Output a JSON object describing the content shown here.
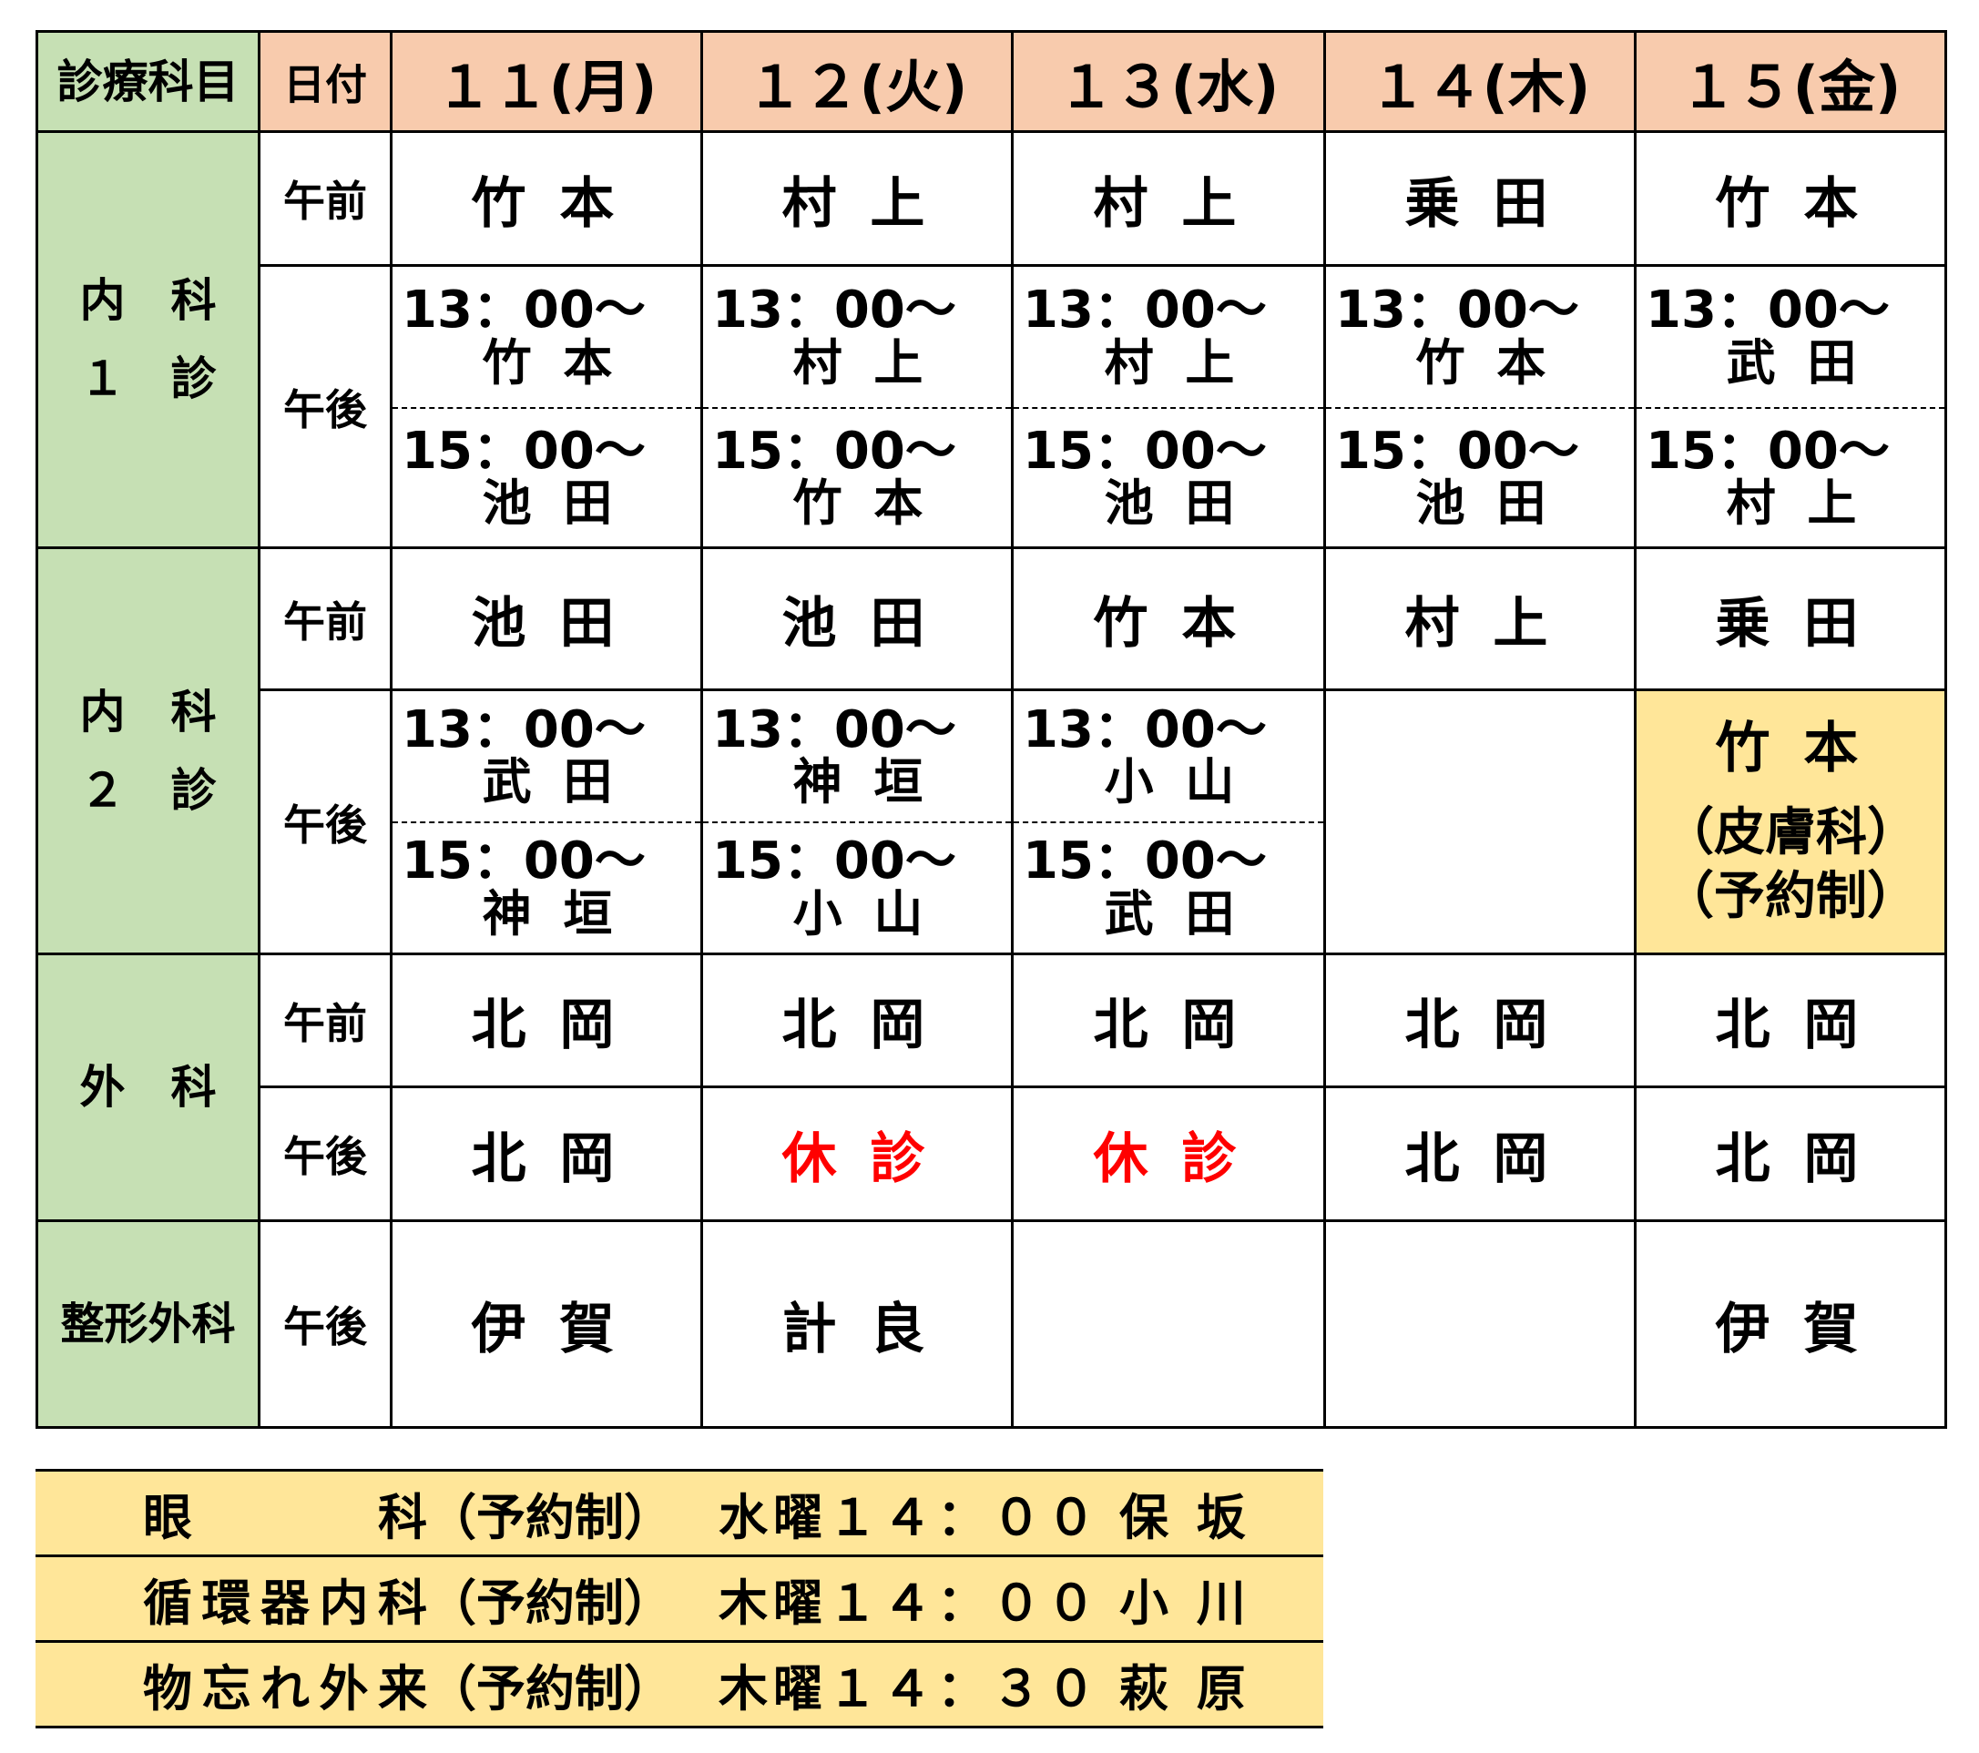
{
  "header": {
    "dept_label": "診療科目",
    "date_label": "日付",
    "days": [
      "１１(月)",
      "１２(火)",
      "１３(水)",
      "１４(木)",
      "１５(金)"
    ]
  },
  "periods": {
    "am": "午前",
    "pm": "午後"
  },
  "sections": [
    {
      "dept": [
        "内　科",
        "１　診"
      ],
      "am": [
        "竹 本",
        "村 上",
        "村 上",
        "乗 田",
        "竹 本"
      ],
      "pm_slots": [
        {
          "time": "13：00～",
          "names": [
            "竹 本",
            "村 上",
            "村 上",
            "竹 本",
            "武 田"
          ]
        },
        {
          "time": "15：00～",
          "names": [
            "池 田",
            "竹 本",
            "池 田",
            "池 田",
            "村 上"
          ]
        }
      ]
    },
    {
      "dept": [
        "内　科",
        "２　診"
      ],
      "am": [
        "池 田",
        "池 田",
        "竹 本",
        "村 上",
        "乗 田"
      ],
      "pm_slots": [
        {
          "time": "13：00～",
          "names": [
            "武 田",
            "神 垣",
            "小 山"
          ]
        },
        {
          "time": "15：00～",
          "names": [
            "神 垣",
            "小 山",
            "武 田"
          ]
        }
      ],
      "pm_thursday": "",
      "pm_friday": {
        "name": "竹 本",
        "note1": "（皮膚科）",
        "note2": "（予約制）"
      }
    },
    {
      "dept": [
        "外　科"
      ],
      "am": [
        "北 岡",
        "北 岡",
        "北 岡",
        "北 岡",
        "北 岡"
      ],
      "pm": [
        "北 岡",
        "休 診",
        "休 診",
        "北 岡",
        "北 岡"
      ]
    },
    {
      "dept": [
        "整形外科"
      ],
      "pm": [
        "伊 賀",
        "計 良",
        "",
        "",
        "伊 賀"
      ]
    }
  ],
  "closed_label": "休 診",
  "colors": {
    "header": "#f8cbad",
    "dept": "#c6e0b4",
    "highlight": "#ffe699",
    "closed": "#ff0000"
  },
  "extra": [
    {
      "dept": "眼　　　科",
      "note": "（予約制）",
      "schedule": "水曜１４：００",
      "doctor": "保 坂"
    },
    {
      "dept": "循環器内科",
      "note": "（予約制）",
      "schedule": "木曜１４：００",
      "doctor": "小 川"
    },
    {
      "dept": "物忘れ外来",
      "note": "（予約制）",
      "schedule": "木曜１４：３０",
      "doctor": "萩 原"
    }
  ]
}
